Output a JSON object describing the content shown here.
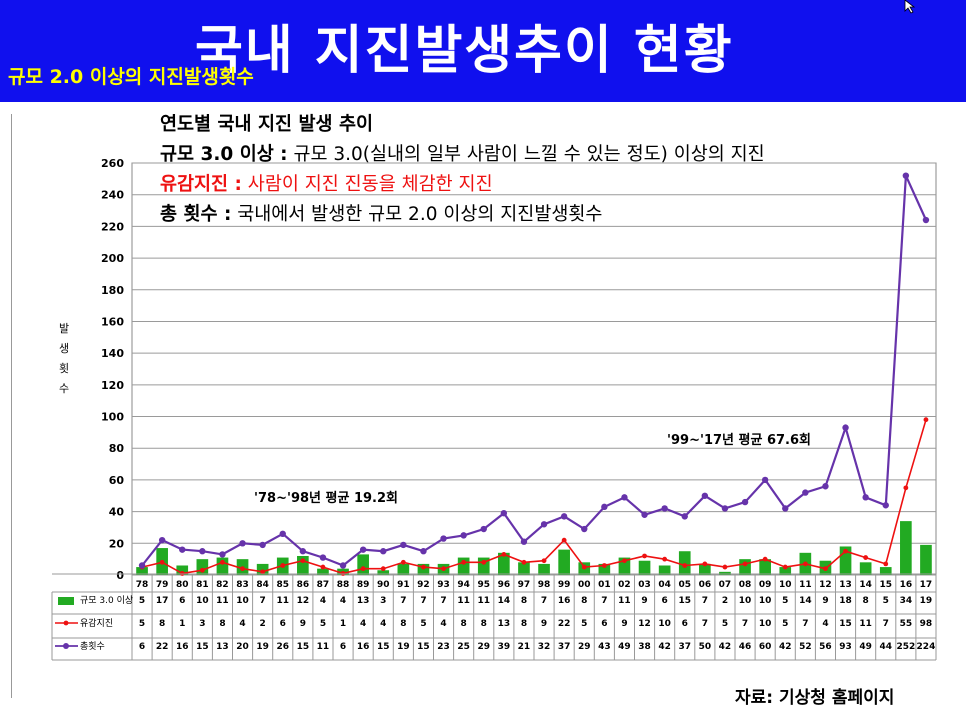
{
  "header": {
    "title": "국내 지진발생추이 현황",
    "subtitle": "규모 2.0 이상의 지진발생횟수"
  },
  "description": {
    "heading": "연도별 국내 지진 발생 추이",
    "line1_label": "규모 3.0 이상 :",
    "line1_text": " 규모 3.0(실내의 일부 사람이 느낄 수 있는 정도) 이상의 지진",
    "line2_label": "유감지진 :",
    "line2_text": " 사람이 지진 진동을 체감한 지진",
    "line3_label": "총 횟수 :",
    "line3_text": " 국내에서 발생한 규모 2.0 이상의 지진발생횟수"
  },
  "source": "자료: 기상청 홈페이지",
  "colors": {
    "header_bg": "#1010ee",
    "title": "#ffffff",
    "subtitle": "#ffff00",
    "bar": "#22aa22",
    "felt_line": "#ee1111",
    "total_line": "#6633aa"
  },
  "chart_data": {
    "type": "bar",
    "categories": [
      "78",
      "79",
      "80",
      "81",
      "82",
      "83",
      "84",
      "85",
      "86",
      "87",
      "88",
      "89",
      "90",
      "91",
      "92",
      "93",
      "94",
      "95",
      "96",
      "97",
      "98",
      "99",
      "00",
      "01",
      "02",
      "03",
      "04",
      "05",
      "06",
      "07",
      "08",
      "09",
      "10",
      "11",
      "12",
      "13",
      "14",
      "15",
      "16",
      "17"
    ],
    "ylabel": "발생횟수",
    "ylim": [
      0,
      260
    ],
    "yticks": [
      0,
      20,
      40,
      60,
      80,
      100,
      120,
      140,
      160,
      180,
      200,
      220,
      240,
      260
    ],
    "grid": true,
    "series": [
      {
        "name": "규모 3.0 이상",
        "type": "bar",
        "values": [
          5,
          17,
          6,
          10,
          11,
          10,
          7,
          11,
          12,
          4,
          4,
          13,
          3,
          7,
          7,
          7,
          11,
          11,
          14,
          8,
          7,
          16,
          8,
          7,
          11,
          9,
          6,
          15,
          7,
          2,
          10,
          10,
          5,
          14,
          9,
          18,
          8,
          5,
          34,
          19
        ]
      },
      {
        "name": "유감지진",
        "type": "line",
        "values": [
          5,
          8,
          1,
          3,
          8,
          4,
          2,
          6,
          9,
          5,
          1,
          4,
          4,
          8,
          5,
          4,
          8,
          8,
          13,
          8,
          9,
          22,
          5,
          6,
          9,
          12,
          10,
          6,
          7,
          5,
          7,
          10,
          5,
          7,
          4,
          15,
          11,
          7,
          55,
          98
        ]
      },
      {
        "name": "총횟수",
        "type": "line",
        "values": [
          6,
          22,
          16,
          15,
          13,
          20,
          19,
          26,
          15,
          11,
          6,
          16,
          15,
          19,
          15,
          23,
          25,
          29,
          39,
          21,
          32,
          37,
          29,
          43,
          49,
          38,
          42,
          37,
          50,
          42,
          46,
          60,
          42,
          52,
          56,
          93,
          49,
          44,
          252,
          224
        ]
      }
    ],
    "annotations": [
      "'78~'98년 평균 19.2회",
      "'99~'17년 평균 67.6회"
    ]
  }
}
